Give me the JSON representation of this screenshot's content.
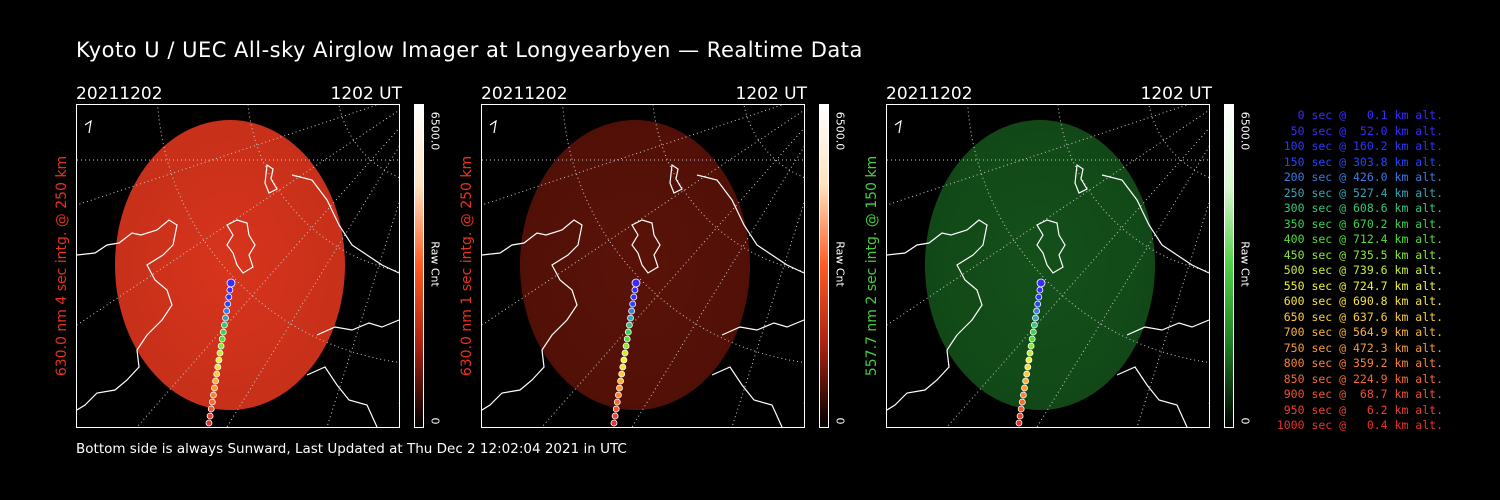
{
  "title": "Kyoto U / UEC All-sky Airglow Imager at Longyearbyen — Realtime Data",
  "footer": "Bottom side is always Sunward, Last Updated at Thu Dec  2 12:02:04 2021 in UTC",
  "panels": [
    {
      "date": "20211202",
      "time": "1202 UT",
      "ylabel": "630.0 nm 4 sec intg. @ 250 km",
      "label_color": "#e8321e",
      "cb_max": "6500.0",
      "cb_min": "0",
      "cb_unit": "Raw Cnt",
      "glow_color": "#d8341c",
      "glow_level": 0.92,
      "cb_colors": [
        "#000000",
        "#a8200f",
        "#ff5a22",
        "#ffe2c0",
        "#ffffff"
      ]
    },
    {
      "date": "20211202",
      "time": "1202 UT",
      "ylabel": "630.0 nm 1 sec intg. @ 250 km",
      "label_color": "#e8321e",
      "cb_max": "6500.0",
      "cb_min": "0",
      "cb_unit": "Raw Cnt",
      "glow_color": "#5a1208",
      "glow_level": 0.9,
      "cb_colors": [
        "#000000",
        "#a8200f",
        "#ff5a22",
        "#ffe2c0",
        "#ffffff"
      ]
    },
    {
      "date": "20211202",
      "time": "1202 UT",
      "ylabel": "557.7 nm 2 sec intg. @ 150 km",
      "label_color": "#44d03c",
      "cb_max": "6500.0",
      "cb_min": "0",
      "cb_unit": "Raw Cnt",
      "glow_color": "#14501a",
      "glow_level": 0.9,
      "cb_colors": [
        "#000000",
        "#1e7a22",
        "#4fd046",
        "#d8f7d0",
        "#ffffff"
      ]
    }
  ],
  "legend": [
    {
      "text": "0 sec @   0.1 km alt.",
      "color": "#3a2cff"
    },
    {
      "text": "50 sec @  52.0 km alt.",
      "color": "#3a2cff"
    },
    {
      "text": "100 sec @ 160.2 km alt.",
      "color": "#2b36ff"
    },
    {
      "text": "150 sec @ 303.8 km alt.",
      "color": "#2446ff"
    },
    {
      "text": "200 sec @ 426.0 km alt.",
      "color": "#3c7be0"
    },
    {
      "text": "250 sec @ 527.4 km alt.",
      "color": "#3aa3b8"
    },
    {
      "text": "300 sec @ 608.6 km alt.",
      "color": "#38c47a"
    },
    {
      "text": "350 sec @ 670.2 km alt.",
      "color": "#3cd24a"
    },
    {
      "text": "400 sec @ 712.4 km alt.",
      "color": "#52dc3a"
    },
    {
      "text": "450 sec @ 735.5 km alt.",
      "color": "#8ae638"
    },
    {
      "text": "500 sec @ 739.6 km alt.",
      "color": "#c4ec38"
    },
    {
      "text": "550 sec @ 724.7 km alt.",
      "color": "#eef03c"
    },
    {
      "text": "600 sec @ 690.8 km alt.",
      "color": "#f4e23c"
    },
    {
      "text": "650 sec @ 637.6 km alt.",
      "color": "#f8cc3a"
    },
    {
      "text": "700 sec @ 564.9 km alt.",
      "color": "#f8b23a"
    },
    {
      "text": "750 sec @ 472.3 km alt.",
      "color": "#f89a38"
    },
    {
      "text": "800 sec @ 359.2 km alt.",
      "color": "#f88236"
    },
    {
      "text": "850 sec @ 224.9 km alt.",
      "color": "#f46a34"
    },
    {
      "text": "900 sec @  68.7 km alt.",
      "color": "#f05232"
    },
    {
      "text": "950 sec @   6.2 km alt.",
      "color": "#ec4030"
    },
    {
      "text": "1000 sec @   0.4 km alt.",
      "color": "#e8322e"
    }
  ]
}
